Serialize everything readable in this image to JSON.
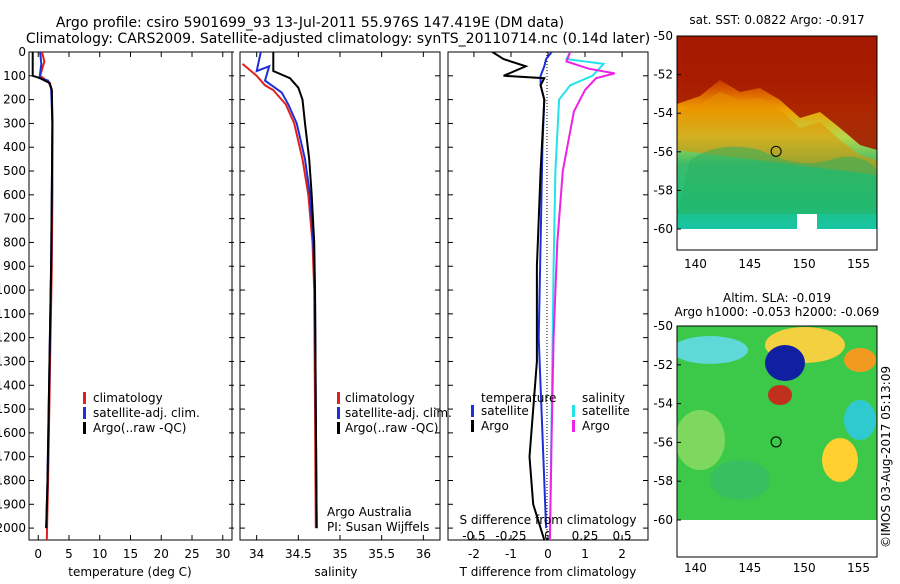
{
  "header": {
    "title_line1": "Argo profile: csiro 5901699_93 13-Jul-2011 55.976S 147.419E (DM data)",
    "title_line2": "Climatology: CARS2009. Satellite-adjusted climatology: synTS_20110714.nc (0.14d later)"
  },
  "footer": {
    "credit": "©IMOS 03-Aug-2017 05:13:09"
  },
  "colors": {
    "climatology": "#e0201c",
    "satellite": "#1c2fd8",
    "argo": "#000000",
    "salinity_satellite": "#22e3ea",
    "salinity_argo": "#ee22e6"
  },
  "chart_data": [
    {
      "id": "temperature",
      "type": "line",
      "xlabel": "temperature (deg C)",
      "ylabel": "",
      "xlim": [
        -1.5,
        31.5
      ],
      "ylim": [
        2050,
        0
      ],
      "xticks": [
        "0",
        "5",
        "10",
        "15",
        "20",
        "25",
        "30"
      ],
      "yticks": [
        "0",
        "100",
        "200",
        "300",
        "400",
        "500",
        "600",
        "700",
        "800",
        "900",
        "1000",
        "1100",
        "1200",
        "1300",
        "1400",
        "1500",
        "1600",
        "1700",
        "1800",
        "1900",
        "2000"
      ],
      "legend": [
        "climatology",
        "satellite-adj. clim.",
        "Argo(..raw -QC)"
      ],
      "legend_position": "center",
      "series": [
        {
          "name": "climatology",
          "color": "#e0201c",
          "points": [
            [
              0.6,
              0
            ],
            [
              1.0,
              40
            ],
            [
              0.3,
              100
            ],
            [
              1.9,
              130
            ],
            [
              2.2,
              160
            ],
            [
              2.3,
              300
            ],
            [
              2.3,
              600
            ],
            [
              2.2,
              900
            ],
            [
              2.0,
              1200
            ],
            [
              1.8,
              1500
            ],
            [
              1.6,
              1800
            ],
            [
              1.4,
              2050
            ]
          ]
        },
        {
          "name": "satellite-adj. clim.",
          "color": "#1c2fd8",
          "points": [
            [
              0.3,
              0
            ],
            [
              0.5,
              50
            ],
            [
              0.2,
              110
            ],
            [
              1.6,
              120
            ],
            [
              2.1,
              150
            ],
            [
              2.3,
              300
            ],
            [
              2.2,
              600
            ],
            [
              2.1,
              900
            ],
            [
              1.9,
              1200
            ],
            [
              1.7,
              1500
            ],
            [
              1.5,
              1800
            ],
            [
              1.3,
              2000
            ]
          ]
        },
        {
          "name": "Argo(..raw -QC)",
          "color": "#000000",
          "points": [
            [
              -0.9,
              0
            ],
            [
              -0.9,
              100
            ],
            [
              0.3,
              110
            ],
            [
              1.8,
              130
            ],
            [
              2.2,
              160
            ],
            [
              2.3,
              300
            ],
            [
              2.2,
              600
            ],
            [
              2.1,
              900
            ],
            [
              1.9,
              1200
            ],
            [
              1.7,
              1500
            ],
            [
              1.5,
              1800
            ],
            [
              1.3,
              2000
            ]
          ]
        }
      ]
    },
    {
      "id": "salinity",
      "type": "line",
      "xlabel": "salinity",
      "xlim": [
        33.8,
        36.2
      ],
      "ylim": [
        2050,
        0
      ],
      "xticks": [
        "34",
        "34.5",
        "35",
        "35.5",
        "36"
      ],
      "legend": [
        "climatology",
        "satellite-adj. clim.",
        "Argo(..raw -QC)"
      ],
      "legend_position": "center-right",
      "annotation": [
        "Argo Australia",
        "PI: Susan Wijffels"
      ],
      "series": [
        {
          "name": "climatology",
          "color": "#e0201c",
          "points": [
            [
              33.83,
              50
            ],
            [
              34.0,
              100
            ],
            [
              34.1,
              140
            ],
            [
              34.2,
              160
            ],
            [
              34.35,
              220
            ],
            [
              34.45,
              300
            ],
            [
              34.55,
              450
            ],
            [
              34.62,
              600
            ],
            [
              34.67,
              800
            ],
            [
              34.69,
              1000
            ],
            [
              34.7,
              1500
            ],
            [
              34.71,
              2000
            ]
          ]
        },
        {
          "name": "satellite-adj. clim.",
          "color": "#1c2fd8",
          "points": [
            [
              34.05,
              0
            ],
            [
              34.0,
              80
            ],
            [
              34.15,
              60
            ],
            [
              34.1,
              120
            ],
            [
              34.3,
              170
            ],
            [
              34.38,
              220
            ],
            [
              34.48,
              300
            ],
            [
              34.58,
              450
            ],
            [
              34.64,
              600
            ],
            [
              34.68,
              800
            ],
            [
              34.7,
              1000
            ],
            [
              34.71,
              1500
            ],
            [
              34.72,
              2000
            ]
          ]
        },
        {
          "name": "Argo(..raw -QC)",
          "color": "#000000",
          "points": [
            [
              34.2,
              0
            ],
            [
              34.2,
              80
            ],
            [
              34.4,
              110
            ],
            [
              34.5,
              150
            ],
            [
              34.55,
              200
            ],
            [
              34.58,
              300
            ],
            [
              34.63,
              450
            ],
            [
              34.66,
              600
            ],
            [
              34.69,
              800
            ],
            [
              34.7,
              1000
            ],
            [
              34.71,
              1500
            ],
            [
              34.72,
              2000
            ]
          ]
        }
      ]
    },
    {
      "id": "difference",
      "type": "line",
      "xlabel": "T difference from climatology",
      "x2label": "S difference from climatology",
      "xlim": [
        -2.7,
        2.7
      ],
      "ylim": [
        2050,
        0
      ],
      "xticks": [
        "-2",
        "-1",
        "0",
        "1",
        "2"
      ],
      "x2ticks": [
        "-0.5",
        "-0.25",
        "0",
        "0.25",
        "0.5"
      ],
      "legend_temperature_title": "temperature",
      "legend_salinity_title": "salinity",
      "legend_temperature": [
        "satellite",
        "Argo"
      ],
      "legend_salinity": [
        "satellite",
        "Argo"
      ],
      "series": [
        {
          "name": "temperature satellite",
          "color": "#1c2fd8",
          "points": [
            [
              0.1,
              0
            ],
            [
              -0.05,
              30
            ],
            [
              -0.1,
              60
            ],
            [
              -0.2,
              100
            ],
            [
              -0.2,
              140
            ],
            [
              -0.1,
              200
            ],
            [
              -0.15,
              400
            ],
            [
              -0.2,
              800
            ],
            [
              -0.25,
              1200
            ],
            [
              -0.15,
              1600
            ],
            [
              -0.05,
              2000
            ]
          ]
        },
        {
          "name": "temperature Argo",
          "color": "#000000",
          "points": [
            [
              -1.5,
              0
            ],
            [
              -1.2,
              30
            ],
            [
              -0.6,
              60
            ],
            [
              -1.2,
              100
            ],
            [
              -0.1,
              110
            ],
            [
              -0.2,
              140
            ],
            [
              -0.1,
              200
            ],
            [
              -0.2,
              500
            ],
            [
              -0.3,
              900
            ],
            [
              -0.3,
              1300
            ],
            [
              -0.5,
              1700
            ],
            [
              -0.4,
              1900
            ],
            [
              -0.1,
              2050
            ]
          ]
        },
        {
          "name": "salinity satellite",
          "color": "#22e3ea",
          "points": [
            [
              0.6,
              0
            ],
            [
              0.5,
              30
            ],
            [
              1.5,
              50
            ],
            [
              1.2,
              100
            ],
            [
              0.6,
              140
            ],
            [
              0.3,
              200
            ],
            [
              0.2,
              500
            ],
            [
              0.15,
              900
            ],
            [
              0.1,
              1500
            ],
            [
              0.05,
              2050
            ]
          ]
        },
        {
          "name": "salinity Argo",
          "color": "#ee22e6",
          "points": [
            [
              0.6,
              0
            ],
            [
              0.5,
              40
            ],
            [
              1.1,
              70
            ],
            [
              1.8,
              90
            ],
            [
              1.3,
              110
            ],
            [
              1.0,
              160
            ],
            [
              0.7,
              250
            ],
            [
              0.4,
              500
            ],
            [
              0.25,
              800
            ],
            [
              0.15,
              1200
            ],
            [
              0.1,
              1600
            ],
            [
              0.05,
              2050
            ]
          ]
        }
      ]
    },
    {
      "id": "sst_map",
      "type": "heatmap",
      "title": "sat. SST: 0.0822  Argo: -0.917",
      "xlim": [
        138.3,
        156.7
      ],
      "ylim": [
        -62,
        -50
      ],
      "xticks": [
        "140",
        "145",
        "150",
        "155"
      ],
      "yticks": [
        "-50",
        "-52",
        "-54",
        "-56",
        "-58",
        "-60"
      ],
      "marker": [
        147.419,
        -55.976
      ]
    },
    {
      "id": "sla_map",
      "type": "heatmap",
      "title_line1": "Altim. SLA: -0.019",
      "title_line2": "Argo h1000: -0.053 h2000: -0.069",
      "xlim": [
        138.3,
        156.7
      ],
      "ylim": [
        -62,
        -50
      ],
      "xticks": [
        "140",
        "145",
        "150",
        "155"
      ],
      "yticks": [
        "-50",
        "-52",
        "-54",
        "-56",
        "-58",
        "-60"
      ],
      "marker": [
        147.419,
        -55.976
      ]
    }
  ]
}
